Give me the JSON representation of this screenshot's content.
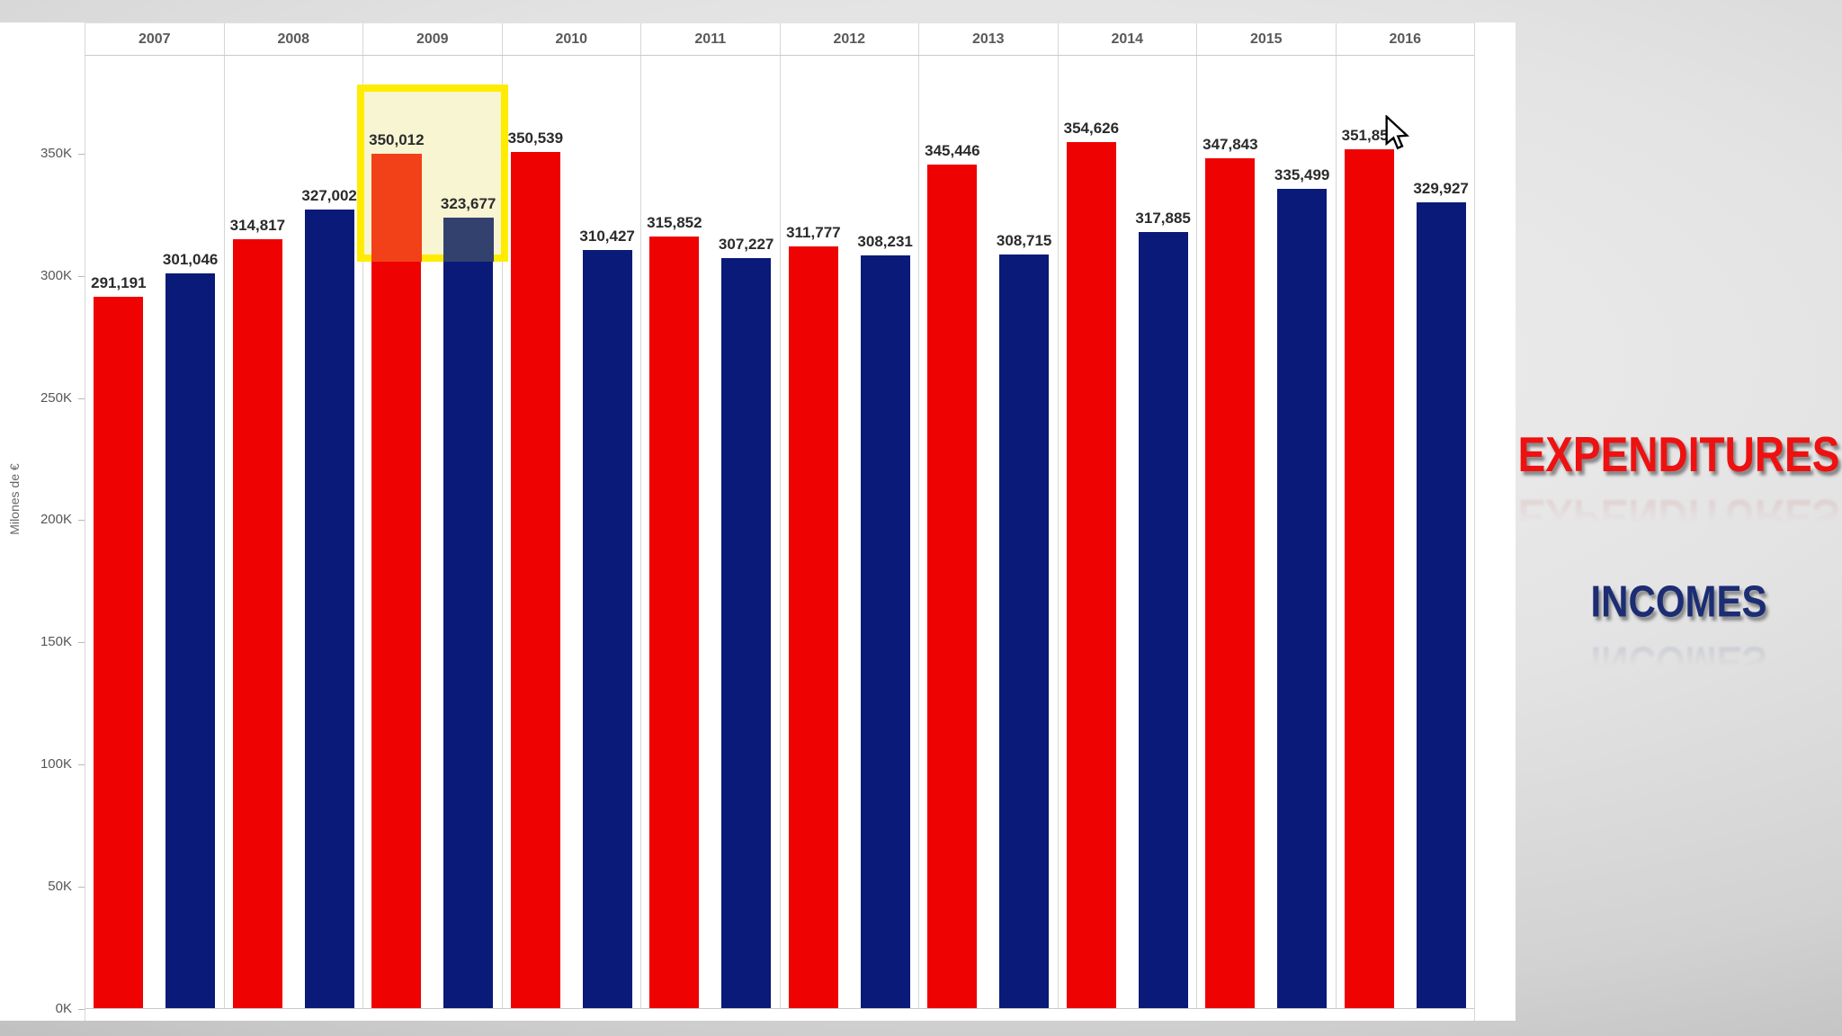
{
  "chart_data": {
    "type": "bar",
    "title": "",
    "xlabel": "",
    "ylabel": "Milones de €",
    "categories": [
      "2007",
      "2008",
      "2009",
      "2010",
      "2011",
      "2012",
      "2013",
      "2014",
      "2015",
      "2016"
    ],
    "series": [
      {
        "name": "EXPENDITURES",
        "color": "#ee0202",
        "values": [
          291191,
          314817,
          350012,
          350539,
          315852,
          311777,
          345446,
          354626,
          347843,
          351856
        ],
        "labels": [
          "291,191",
          "314,817",
          "350,012",
          "350,539",
          "315,852",
          "311,777",
          "345,446",
          "354,626",
          "347,843",
          "351,856"
        ]
      },
      {
        "name": "INCOMES",
        "color": "#0a1a78",
        "values": [
          301046,
          327002,
          323677,
          310427,
          307227,
          308231,
          308715,
          317885,
          335499,
          329927
        ],
        "labels": [
          "301,046",
          "327,002",
          "323,677",
          "310,427",
          "307,227",
          "308,231",
          "308,715",
          "317,885",
          "335,499",
          "329,927"
        ]
      }
    ],
    "y_ticks": [
      "0K",
      "50K",
      "100K",
      "150K",
      "200K",
      "250K",
      "300K",
      "350K"
    ],
    "y_tick_step": 50000,
    "ylim": [
      0,
      390000
    ],
    "grid": "vertical year separators only",
    "legend_position": "right side panel"
  },
  "highlight": {
    "category": "2009",
    "border_color": "#ffec00",
    "fill_color": "#f8f5d2",
    "expenditures_tint": "#f24018",
    "incomes_tint": "#33416f"
  },
  "side_panel": {
    "expenditures_color": "#ee1111",
    "incomes_color": "#1c2d74"
  },
  "cursor": {
    "visible": true,
    "shape": "arrow"
  }
}
